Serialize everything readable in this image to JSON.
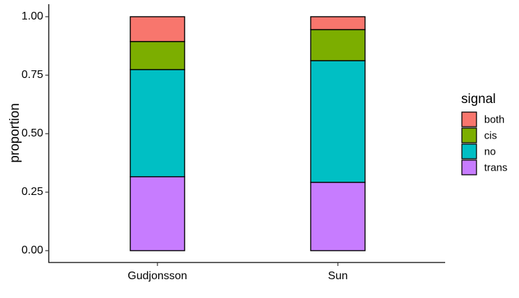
{
  "chart_data": {
    "type": "bar",
    "stacked": true,
    "categories": [
      "Gudjonsson",
      "Sun"
    ],
    "series": [
      {
        "name": "trans",
        "color": "#C77CFF",
        "values": [
          0.316,
          0.292
        ]
      },
      {
        "name": "no",
        "color": "#00BFC4",
        "values": [
          0.458,
          0.52
        ]
      },
      {
        "name": "cis",
        "color": "#7CAE00",
        "values": [
          0.12,
          0.133
        ]
      },
      {
        "name": "both",
        "color": "#F8766D",
        "values": [
          0.106,
          0.055
        ]
      }
    ],
    "ylabel": "proportion",
    "xlabel": "",
    "ylim": [
      0,
      1
    ],
    "yticks": [
      0.0,
      0.25,
      0.5,
      0.75,
      1.0
    ],
    "ytick_labels": [
      "0.00",
      "0.25",
      "0.50",
      "0.75",
      "1.00"
    ],
    "legend": {
      "title": "signal",
      "placement": "right",
      "entries": [
        "both",
        "cis",
        "no",
        "trans"
      ]
    },
    "grid": false
  }
}
